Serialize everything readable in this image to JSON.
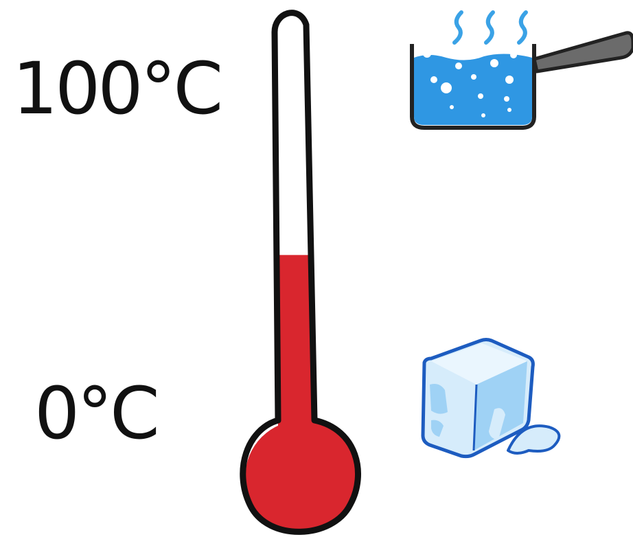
{
  "labels": {
    "boiling": "100°C",
    "freezing": "0°C"
  },
  "thermometer": {
    "fill_level_percent": 33,
    "liquid_color": "#d9262e",
    "outline_color": "#111111"
  },
  "icons": {
    "boiling": "boiling-water-pot-icon",
    "freezing": "melting-ice-cube-icon"
  },
  "colors": {
    "water": "#2f97e3",
    "steam": "#3aa2e6",
    "ice_outline": "#1d5cc0",
    "ice_light": "#d6ecfb",
    "ice_mid": "#9fd2f5"
  }
}
